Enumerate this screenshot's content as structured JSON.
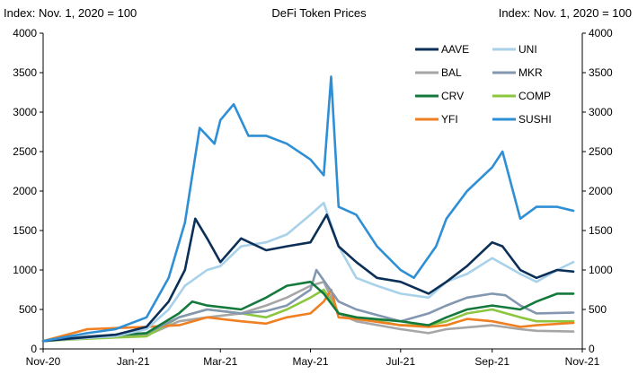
{
  "chart_data": {
    "type": "line",
    "title": "DeFi Token Prices",
    "left_axis_label": "Index: Nov. 1, 2020 = 100",
    "right_axis_label": "Index: Nov. 1, 2020 = 100",
    "x_ticks": [
      "Nov-20",
      "Jan-21",
      "Mar-21",
      "May-21",
      "Jul-21",
      "Sep-21",
      "Nov-21"
    ],
    "x_tick_dates": [
      "2020-11-01",
      "2021-01-01",
      "2021-03-01",
      "2021-05-01",
      "2021-07-01",
      "2021-09-01",
      "2021-11-01"
    ],
    "ylim": [
      0,
      4000
    ],
    "y_ticks": [
      "0",
      "500",
      "1000",
      "1500",
      "2000",
      "2500",
      "3000",
      "3500",
      "4000"
    ],
    "legend_position": "top-right",
    "grid": false,
    "series": [
      {
        "name": "AAVE",
        "color": "#0b2f57",
        "x": [
          "2020-11-01",
          "2020-12-01",
          "2020-12-20",
          "2021-01-10",
          "2021-01-25",
          "2021-02-05",
          "2021-02-12",
          "2021-02-20",
          "2021-03-01",
          "2021-03-15",
          "2021-04-01",
          "2021-04-15",
          "2021-05-01",
          "2021-05-12",
          "2021-05-20",
          "2021-06-01",
          "2021-06-15",
          "2021-07-01",
          "2021-07-20",
          "2021-08-01",
          "2021-08-15",
          "2021-09-01",
          "2021-09-08",
          "2021-09-20",
          "2021-10-01",
          "2021-10-15",
          "2021-10-26"
        ],
        "values": [
          100,
          150,
          180,
          280,
          600,
          1000,
          1650,
          1400,
          1100,
          1400,
          1250,
          1300,
          1350,
          1700,
          1300,
          1100,
          900,
          850,
          700,
          850,
          1050,
          1350,
          1300,
          1000,
          900,
          1000,
          980
        ]
      },
      {
        "name": "UNI",
        "color": "#a8d1ea",
        "x": [
          "2020-11-01",
          "2020-12-01",
          "2020-12-20",
          "2021-01-10",
          "2021-01-25",
          "2021-02-05",
          "2021-02-20",
          "2021-03-01",
          "2021-03-15",
          "2021-04-01",
          "2021-04-15",
          "2021-05-01",
          "2021-05-10",
          "2021-05-20",
          "2021-06-01",
          "2021-06-15",
          "2021-07-01",
          "2021-07-20",
          "2021-08-01",
          "2021-08-15",
          "2021-09-01",
          "2021-09-20",
          "2021-10-01",
          "2021-10-15",
          "2021-10-26"
        ],
        "values": [
          100,
          140,
          160,
          250,
          500,
          800,
          1000,
          1050,
          1300,
          1350,
          1450,
          1700,
          1850,
          1300,
          900,
          800,
          700,
          650,
          850,
          950,
          1150,
          950,
          850,
          1000,
          1100
        ]
      },
      {
        "name": "BAL",
        "color": "#a6a6a6",
        "x": [
          "2020-11-01",
          "2020-12-01",
          "2021-01-10",
          "2021-02-01",
          "2021-02-20",
          "2021-03-15",
          "2021-04-01",
          "2021-04-15",
          "2021-05-01",
          "2021-05-10",
          "2021-05-20",
          "2021-06-01",
          "2021-07-01",
          "2021-07-20",
          "2021-08-01",
          "2021-09-01",
          "2021-09-20",
          "2021-10-01",
          "2021-10-26"
        ],
        "values": [
          100,
          140,
          170,
          350,
          400,
          450,
          550,
          650,
          800,
          850,
          450,
          350,
          250,
          200,
          250,
          300,
          250,
          230,
          220
        ]
      },
      {
        "name": "MKR",
        "color": "#8497b0",
        "x": [
          "2020-11-01",
          "2020-12-01",
          "2021-01-10",
          "2021-02-01",
          "2021-02-20",
          "2021-03-15",
          "2021-04-01",
          "2021-04-15",
          "2021-05-01",
          "2021-05-05",
          "2021-05-20",
          "2021-06-01",
          "2021-07-01",
          "2021-07-20",
          "2021-08-01",
          "2021-08-15",
          "2021-09-01",
          "2021-09-10",
          "2021-09-20",
          "2021-10-01",
          "2021-10-26"
        ],
        "values": [
          100,
          160,
          200,
          400,
          500,
          450,
          480,
          550,
          750,
          1000,
          600,
          500,
          350,
          450,
          550,
          650,
          700,
          680,
          550,
          450,
          460
        ]
      },
      {
        "name": "CRV",
        "color": "#147a3c",
        "x": [
          "2020-11-01",
          "2020-12-01",
          "2021-01-10",
          "2021-02-01",
          "2021-02-10",
          "2021-02-20",
          "2021-03-15",
          "2021-04-01",
          "2021-04-15",
          "2021-05-01",
          "2021-05-10",
          "2021-05-20",
          "2021-06-01",
          "2021-07-01",
          "2021-07-20",
          "2021-08-01",
          "2021-08-15",
          "2021-09-01",
          "2021-09-20",
          "2021-10-01",
          "2021-10-15",
          "2021-10-26"
        ],
        "values": [
          100,
          150,
          200,
          450,
          600,
          550,
          500,
          650,
          800,
          850,
          700,
          450,
          400,
          350,
          300,
          400,
          500,
          550,
          500,
          600,
          700,
          700
        ]
      },
      {
        "name": "COMP",
        "color": "#8cc63f",
        "x": [
          "2020-11-01",
          "2020-12-01",
          "2021-01-10",
          "2021-02-01",
          "2021-02-20",
          "2021-03-15",
          "2021-04-01",
          "2021-04-15",
          "2021-05-01",
          "2021-05-10",
          "2021-05-20",
          "2021-06-01",
          "2021-07-01",
          "2021-07-20",
          "2021-08-01",
          "2021-08-15",
          "2021-09-01",
          "2021-09-20",
          "2021-10-01",
          "2021-10-26"
        ],
        "values": [
          100,
          130,
          160,
          400,
          500,
          450,
          400,
          500,
          650,
          750,
          450,
          400,
          300,
          300,
          350,
          450,
          500,
          400,
          350,
          350
        ]
      },
      {
        "name": "YFI",
        "color": "#f07f22",
        "x": [
          "2020-11-01",
          "2020-12-01",
          "2021-01-10",
          "2021-02-01",
          "2021-02-20",
          "2021-03-15",
          "2021-04-01",
          "2021-04-15",
          "2021-05-01",
          "2021-05-10",
          "2021-05-15",
          "2021-05-20",
          "2021-06-01",
          "2021-07-01",
          "2021-07-20",
          "2021-08-01",
          "2021-08-15",
          "2021-09-01",
          "2021-09-20",
          "2021-10-01",
          "2021-10-26"
        ],
        "values": [
          100,
          250,
          280,
          300,
          400,
          350,
          320,
          400,
          450,
          600,
          750,
          400,
          380,
          300,
          280,
          300,
          380,
          350,
          280,
          300,
          330
        ]
      },
      {
        "name": "SUSHI",
        "color": "#2f8fd5",
        "x": [
          "2020-11-01",
          "2020-12-01",
          "2020-12-20",
          "2021-01-10",
          "2021-01-25",
          "2021-02-05",
          "2021-02-15",
          "2021-02-25",
          "2021-03-01",
          "2021-03-10",
          "2021-03-20",
          "2021-04-01",
          "2021-04-15",
          "2021-05-01",
          "2021-05-10",
          "2021-05-15",
          "2021-05-20",
          "2021-06-01",
          "2021-06-15",
          "2021-07-01",
          "2021-07-10",
          "2021-07-25",
          "2021-08-01",
          "2021-08-15",
          "2021-09-01",
          "2021-09-08",
          "2021-09-20",
          "2021-10-01",
          "2021-10-15",
          "2021-10-26"
        ],
        "values": [
          100,
          200,
          250,
          400,
          900,
          1600,
          2800,
          2600,
          2900,
          3100,
          2700,
          2700,
          2600,
          2400,
          2200,
          3450,
          1800,
          1700,
          1300,
          1000,
          900,
          1300,
          1650,
          2000,
          2300,
          2500,
          1650,
          1800,
          1800,
          1750
        ]
      }
    ]
  }
}
